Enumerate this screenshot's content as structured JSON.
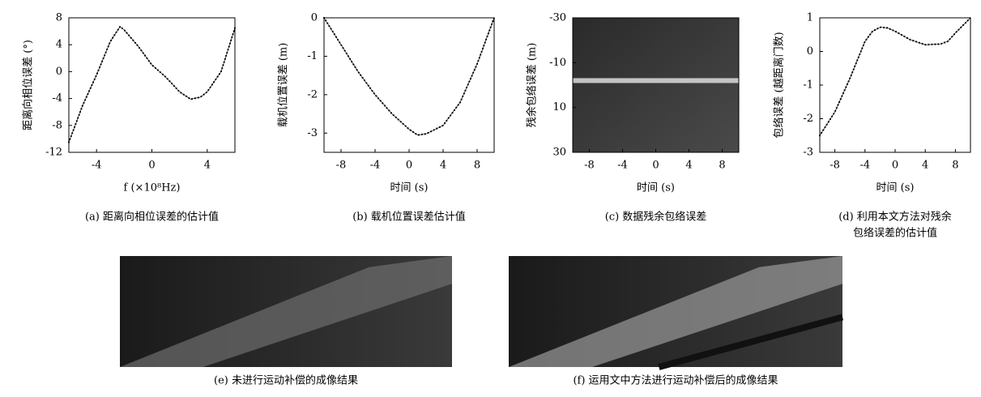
{
  "chart_data": [
    {
      "type": "line",
      "caption": [
        "(a) 距离向相位误差的估计值"
      ],
      "xlabel": "f (×10⁸Hz)",
      "ylabel": "距离向相位误差 (°)",
      "x": [
        -6,
        -5,
        -4,
        -3,
        -2.3,
        -2,
        -1,
        0,
        1,
        2,
        2.8,
        3.5,
        4,
        5,
        6
      ],
      "values": [
        -10.5,
        -5,
        -0.5,
        4.5,
        6.7,
        6.2,
        3.8,
        1,
        -0.8,
        -3,
        -4.1,
        -3.8,
        -3,
        0,
        6.5
      ],
      "xlim": [
        -6,
        6
      ],
      "xticks": [
        -4,
        0,
        4
      ],
      "ylim": [
        -12,
        8
      ],
      "yticks": [
        -12,
        -8,
        -4,
        0,
        4,
        8
      ],
      "color": "#000000"
    },
    {
      "type": "line",
      "caption": [
        "(b) 载机位置误差估计值"
      ],
      "xlabel": "时间 (s)",
      "ylabel": "载机位置误差 (m)",
      "x": [
        -10,
        -8,
        -6,
        -4,
        -2,
        0,
        1,
        2,
        4,
        6,
        8,
        10
      ],
      "values": [
        0,
        -0.7,
        -1.4,
        -2.0,
        -2.5,
        -2.9,
        -3.05,
        -3.02,
        -2.8,
        -2.2,
        -1.2,
        0
      ],
      "xlim": [
        -10,
        10
      ],
      "xticks": [
        -8,
        -4,
        0,
        4,
        8
      ],
      "ylim": [
        -3.5,
        0
      ],
      "yticks": [
        -3,
        -2,
        -1,
        0
      ],
      "color": "#000000"
    },
    {
      "type": "heatmap",
      "caption": [
        "(c) 数据残余包络误差"
      ],
      "xlabel": "时间 (s)",
      "ylabel": "残余包络误差 (m)",
      "xlim": [
        -10,
        10
      ],
      "xticks": [
        -8,
        -4,
        0,
        4,
        8
      ],
      "ylim": [
        30,
        -30
      ],
      "yticks": [
        -30,
        -10,
        10,
        30
      ]
    },
    {
      "type": "line",
      "caption": [
        "(d) 利用本文方法对残余",
        "包络误差的估计值"
      ],
      "xlabel": "时间 (s)",
      "ylabel": "包络误差 (越距离门数)",
      "x": [
        -10,
        -8,
        -6,
        -4,
        -3,
        -2,
        -1,
        0,
        2,
        4,
        6,
        7,
        8,
        10
      ],
      "values": [
        -2.5,
        -1.8,
        -0.8,
        0.3,
        0.6,
        0.72,
        0.7,
        0.6,
        0.35,
        0.2,
        0.22,
        0.3,
        0.55,
        1.0
      ],
      "xlim": [
        -10,
        10
      ],
      "xticks": [
        -8,
        -4,
        0,
        4,
        8
      ],
      "ylim": [
        -3,
        1
      ],
      "yticks": [
        -3,
        -2,
        -1,
        0,
        1
      ],
      "color": "#000000"
    },
    {
      "type": "image",
      "caption": [
        "(e) 未进行运动补偿的成像结果"
      ]
    },
    {
      "type": "image",
      "caption": [
        "(f) 运用文中方法进行运动补偿后的成像结果"
      ]
    }
  ]
}
